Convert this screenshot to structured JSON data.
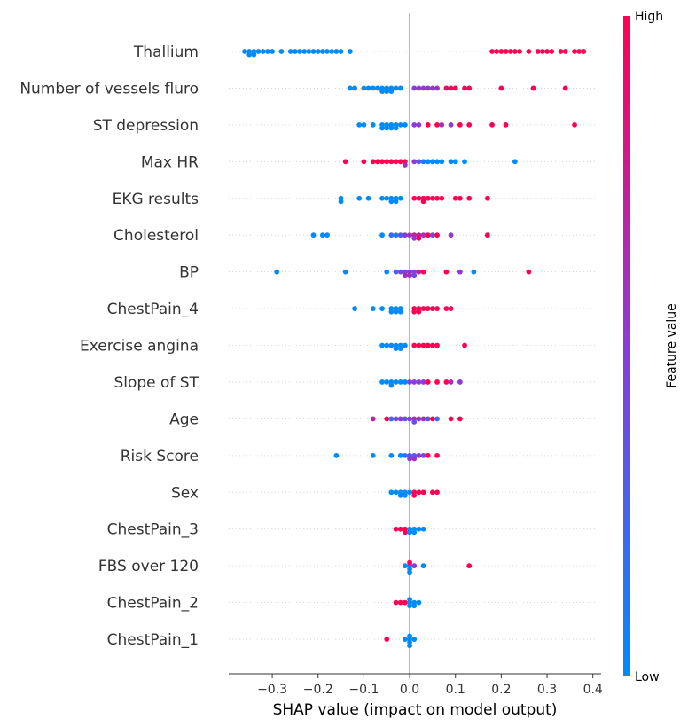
{
  "chart_data": {
    "type": "scatter",
    "subtype": "shap-beeswarm",
    "xlabel": "SHAP value (impact on model output)",
    "xlim": [
      -0.395,
      0.418
    ],
    "xticks": [
      -0.3,
      -0.2,
      -0.1,
      0.0,
      0.1,
      0.2,
      0.3,
      0.4
    ],
    "xtick_labels": [
      "−0.3",
      "−0.2",
      "−0.1",
      "0.0",
      "0.1",
      "0.2",
      "0.3",
      "0.4"
    ],
    "colorbar": {
      "title": "Feature value",
      "high_label": "High",
      "low_label": "Low",
      "low_color": "#008bfb",
      "mid_color": "#8c3bd8",
      "high_color": "#ff0052"
    },
    "zero_line_color": "#999999",
    "features": [
      {
        "name": "Thallium",
        "points": [
          [
            -0.36,
            0
          ],
          [
            -0.35,
            0
          ],
          [
            -0.35,
            0
          ],
          [
            -0.34,
            0
          ],
          [
            -0.34,
            0
          ],
          [
            -0.33,
            0
          ],
          [
            -0.32,
            0
          ],
          [
            -0.31,
            0
          ],
          [
            -0.3,
            0
          ],
          [
            -0.28,
            0
          ],
          [
            -0.26,
            0
          ],
          [
            -0.25,
            0
          ],
          [
            -0.24,
            0
          ],
          [
            -0.23,
            0
          ],
          [
            -0.22,
            0
          ],
          [
            -0.21,
            0
          ],
          [
            -0.2,
            0
          ],
          [
            -0.19,
            0
          ],
          [
            -0.18,
            0
          ],
          [
            -0.17,
            0
          ],
          [
            -0.16,
            0
          ],
          [
            -0.15,
            0
          ],
          [
            -0.13,
            0
          ],
          [
            0.18,
            1
          ],
          [
            0.19,
            1
          ],
          [
            0.2,
            1
          ],
          [
            0.21,
            1
          ],
          [
            0.22,
            1
          ],
          [
            0.23,
            1
          ],
          [
            0.24,
            1
          ],
          [
            0.26,
            1
          ],
          [
            0.28,
            1
          ],
          [
            0.29,
            1
          ],
          [
            0.3,
            1
          ],
          [
            0.31,
            1
          ],
          [
            0.33,
            1
          ],
          [
            0.34,
            1
          ],
          [
            0.36,
            1
          ],
          [
            0.37,
            1
          ],
          [
            0.38,
            1
          ]
        ]
      },
      {
        "name": "Number of vessels fluro",
        "points": [
          [
            -0.13,
            0
          ],
          [
            -0.12,
            0
          ],
          [
            -0.1,
            0
          ],
          [
            -0.09,
            0
          ],
          [
            -0.08,
            0
          ],
          [
            -0.07,
            0
          ],
          [
            -0.06,
            0
          ],
          [
            -0.06,
            0
          ],
          [
            -0.05,
            0
          ],
          [
            -0.05,
            0
          ],
          [
            -0.04,
            0
          ],
          [
            -0.04,
            0
          ],
          [
            -0.03,
            0
          ],
          [
            -0.02,
            0
          ],
          [
            0.01,
            0.5
          ],
          [
            0.02,
            0.5
          ],
          [
            0.03,
            0.5
          ],
          [
            0.04,
            0.5
          ],
          [
            0.05,
            0.55
          ],
          [
            0.06,
            0.6
          ],
          [
            0.08,
            0.9
          ],
          [
            0.09,
            1
          ],
          [
            0.1,
            1
          ],
          [
            0.12,
            1
          ],
          [
            0.13,
            1
          ],
          [
            0.2,
            1
          ],
          [
            0.27,
            1
          ],
          [
            0.34,
            1
          ]
        ]
      },
      {
        "name": "ST depression",
        "points": [
          [
            -0.11,
            0
          ],
          [
            -0.1,
            0
          ],
          [
            -0.08,
            0
          ],
          [
            -0.06,
            0
          ],
          [
            -0.06,
            0
          ],
          [
            -0.05,
            0
          ],
          [
            -0.05,
            0
          ],
          [
            -0.04,
            0
          ],
          [
            -0.04,
            0
          ],
          [
            -0.03,
            0
          ],
          [
            -0.03,
            0
          ],
          [
            -0.02,
            0
          ],
          [
            -0.01,
            0
          ],
          [
            0.01,
            0.5
          ],
          [
            0.02,
            0.5
          ],
          [
            0.04,
            1
          ],
          [
            0.06,
            1
          ],
          [
            0.07,
            0.6
          ],
          [
            0.09,
            0.5
          ],
          [
            0.11,
            1
          ],
          [
            0.13,
            1
          ],
          [
            0.18,
            1
          ],
          [
            0.21,
            1
          ],
          [
            0.36,
            1
          ]
        ]
      },
      {
        "name": "Max HR",
        "points": [
          [
            -0.14,
            1
          ],
          [
            -0.1,
            1
          ],
          [
            -0.08,
            1
          ],
          [
            -0.07,
            1
          ],
          [
            -0.06,
            1
          ],
          [
            -0.05,
            1
          ],
          [
            -0.04,
            1
          ],
          [
            -0.03,
            1
          ],
          [
            -0.02,
            1
          ],
          [
            -0.01,
            1
          ],
          [
            -0.01,
            0.6
          ],
          [
            0.01,
            0.5
          ],
          [
            0.02,
            0.3
          ],
          [
            0.03,
            0.1
          ],
          [
            0.04,
            0
          ],
          [
            0.05,
            0
          ],
          [
            0.06,
            0
          ],
          [
            0.07,
            0
          ],
          [
            0.09,
            0
          ],
          [
            0.1,
            0
          ],
          [
            0.12,
            0
          ],
          [
            0.23,
            0
          ]
        ]
      },
      {
        "name": "EKG results",
        "points": [
          [
            -0.15,
            0
          ],
          [
            -0.15,
            0
          ],
          [
            -0.11,
            0
          ],
          [
            -0.09,
            0
          ],
          [
            -0.06,
            0
          ],
          [
            -0.05,
            0
          ],
          [
            -0.04,
            0
          ],
          [
            -0.04,
            0
          ],
          [
            -0.03,
            0
          ],
          [
            -0.03,
            0
          ],
          [
            -0.02,
            0
          ],
          [
            0.01,
            1
          ],
          [
            0.02,
            1
          ],
          [
            0.03,
            1
          ],
          [
            0.03,
            1
          ],
          [
            0.04,
            1
          ],
          [
            0.05,
            1
          ],
          [
            0.06,
            1
          ],
          [
            0.07,
            1
          ],
          [
            0.1,
            1
          ],
          [
            0.11,
            1
          ],
          [
            0.13,
            1
          ],
          [
            0.17,
            1
          ]
        ]
      },
      {
        "name": "Cholesterol",
        "points": [
          [
            -0.21,
            0
          ],
          [
            -0.19,
            0
          ],
          [
            -0.18,
            0
          ],
          [
            -0.06,
            0
          ],
          [
            -0.04,
            0.2
          ],
          [
            -0.03,
            0.1
          ],
          [
            -0.02,
            0.3
          ],
          [
            -0.01,
            0.5
          ],
          [
            0.0,
            0.6
          ],
          [
            0.01,
            0.7
          ],
          [
            0.01,
            0.5
          ],
          [
            0.02,
            0.8
          ],
          [
            0.02,
            1
          ],
          [
            0.03,
            0.6
          ],
          [
            0.04,
            1
          ],
          [
            0.05,
            0.4
          ],
          [
            0.06,
            1
          ],
          [
            0.09,
            0.5
          ],
          [
            0.17,
            1
          ]
        ]
      },
      {
        "name": "BP",
        "points": [
          [
            -0.29,
            0
          ],
          [
            -0.14,
            0
          ],
          [
            -0.05,
            0
          ],
          [
            -0.03,
            0.3
          ],
          [
            -0.02,
            0.4
          ],
          [
            -0.01,
            0.5
          ],
          [
            -0.01,
            0.6
          ],
          [
            0.0,
            0.5
          ],
          [
            0.0,
            0.6
          ],
          [
            0.01,
            0.5
          ],
          [
            0.01,
            0.4
          ],
          [
            0.02,
            0.7
          ],
          [
            0.03,
            1
          ],
          [
            0.08,
            1
          ],
          [
            0.11,
            0.5
          ],
          [
            0.14,
            0
          ],
          [
            0.26,
            1
          ]
        ]
      },
      {
        "name": "ChestPain_4",
        "points": [
          [
            -0.12,
            0
          ],
          [
            -0.08,
            0
          ],
          [
            -0.06,
            0
          ],
          [
            -0.04,
            0
          ],
          [
            -0.04,
            0
          ],
          [
            -0.03,
            0
          ],
          [
            -0.03,
            0
          ],
          [
            -0.02,
            0
          ],
          [
            -0.02,
            0
          ],
          [
            0.01,
            1
          ],
          [
            0.01,
            1
          ],
          [
            0.02,
            1
          ],
          [
            0.02,
            1
          ],
          [
            0.03,
            1
          ],
          [
            0.04,
            1
          ],
          [
            0.05,
            1
          ],
          [
            0.06,
            1
          ],
          [
            0.08,
            1
          ],
          [
            0.09,
            1
          ]
        ]
      },
      {
        "name": "Exercise angina",
        "points": [
          [
            -0.06,
            0
          ],
          [
            -0.05,
            0
          ],
          [
            -0.04,
            0
          ],
          [
            -0.03,
            0
          ],
          [
            -0.03,
            0
          ],
          [
            -0.02,
            0
          ],
          [
            -0.02,
            0
          ],
          [
            -0.01,
            0
          ],
          [
            0.01,
            1
          ],
          [
            0.02,
            1
          ],
          [
            0.03,
            1
          ],
          [
            0.04,
            1
          ],
          [
            0.05,
            1
          ],
          [
            0.06,
            1
          ],
          [
            0.12,
            1
          ]
        ]
      },
      {
        "name": "Slope of ST",
        "points": [
          [
            -0.06,
            0
          ],
          [
            -0.05,
            0
          ],
          [
            -0.04,
            0
          ],
          [
            -0.04,
            0
          ],
          [
            -0.03,
            0
          ],
          [
            -0.02,
            0
          ],
          [
            -0.01,
            0
          ],
          [
            0.0,
            0.5
          ],
          [
            0.01,
            0.5
          ],
          [
            0.02,
            0.5
          ],
          [
            0.03,
            0.5
          ],
          [
            0.04,
            1
          ],
          [
            0.06,
            1
          ],
          [
            0.08,
            1
          ],
          [
            0.09,
            0.6
          ],
          [
            0.11,
            0.5
          ]
        ]
      },
      {
        "name": "Age",
        "points": [
          [
            -0.08,
            0.7
          ],
          [
            -0.05,
            1
          ],
          [
            -0.04,
            0.2
          ],
          [
            -0.03,
            0.4
          ],
          [
            -0.02,
            0.5
          ],
          [
            -0.01,
            0.3
          ],
          [
            0.0,
            0.5
          ],
          [
            0.01,
            0.6
          ],
          [
            0.01,
            0.4
          ],
          [
            0.02,
            0.5
          ],
          [
            0.03,
            0.6
          ],
          [
            0.04,
            0.3
          ],
          [
            0.05,
            1
          ],
          [
            0.06,
            0.2
          ],
          [
            0.09,
            1
          ],
          [
            0.11,
            1
          ]
        ]
      },
      {
        "name": "Risk Score",
        "points": [
          [
            -0.16,
            0
          ],
          [
            -0.08,
            0
          ],
          [
            -0.04,
            0
          ],
          [
            -0.02,
            0
          ],
          [
            -0.01,
            0.2
          ],
          [
            0.0,
            0.4
          ],
          [
            0.0,
            0.5
          ],
          [
            0.01,
            0.3
          ],
          [
            0.01,
            0.6
          ],
          [
            0.02,
            0.5
          ],
          [
            0.03,
            0.4
          ],
          [
            0.04,
            1
          ],
          [
            0.06,
            1
          ]
        ]
      },
      {
        "name": "Sex",
        "points": [
          [
            -0.04,
            0
          ],
          [
            -0.03,
            0
          ],
          [
            -0.02,
            0
          ],
          [
            -0.02,
            0
          ],
          [
            -0.01,
            0
          ],
          [
            -0.01,
            0
          ],
          [
            0.0,
            0
          ],
          [
            0.01,
            1
          ],
          [
            0.01,
            1
          ],
          [
            0.02,
            1
          ],
          [
            0.03,
            1
          ],
          [
            0.05,
            1
          ],
          [
            0.06,
            1
          ]
        ]
      },
      {
        "name": "ChestPain_3",
        "points": [
          [
            -0.03,
            1
          ],
          [
            -0.02,
            1
          ],
          [
            -0.01,
            1
          ],
          [
            -0.01,
            1
          ],
          [
            0.0,
            0
          ],
          [
            0.0,
            0
          ],
          [
            0.01,
            0
          ],
          [
            0.01,
            0
          ],
          [
            0.02,
            0
          ],
          [
            0.03,
            0
          ]
        ]
      },
      {
        "name": "FBS over 120",
        "points": [
          [
            -0.01,
            0
          ],
          [
            0.0,
            0
          ],
          [
            0.0,
            0
          ],
          [
            0.0,
            1
          ],
          [
            0.01,
            0.5
          ],
          [
            0.0,
            0
          ],
          [
            0.03,
            0
          ],
          [
            0.13,
            1
          ]
        ]
      },
      {
        "name": "ChestPain_2",
        "points": [
          [
            -0.03,
            1
          ],
          [
            -0.02,
            1
          ],
          [
            -0.01,
            1
          ],
          [
            0.0,
            0
          ],
          [
            0.0,
            0
          ],
          [
            0.0,
            0
          ],
          [
            0.01,
            0
          ],
          [
            0.01,
            0
          ],
          [
            0.02,
            0
          ]
        ]
      },
      {
        "name": "ChestPain_1",
        "points": [
          [
            -0.05,
            1
          ],
          [
            -0.01,
            0
          ],
          [
            0.0,
            0
          ],
          [
            0.0,
            0
          ],
          [
            0.0,
            0
          ],
          [
            0.0,
            0
          ],
          [
            0.01,
            0
          ]
        ]
      }
    ]
  }
}
